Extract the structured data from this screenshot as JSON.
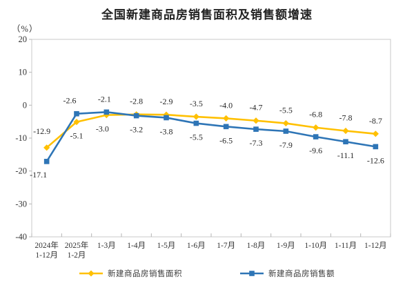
{
  "page": {
    "background": "#ffffff"
  },
  "header": {
    "title": "全国新建商品房销售面积及销售额增速",
    "unit_label": "（%）"
  },
  "chart_data": {
    "type": "line",
    "title": "全国新建商品房销售面积及销售额增速",
    "ylabel": "（%）",
    "xlabel": "",
    "ylim": [
      -40,
      20
    ],
    "yticks": [
      20,
      10,
      0,
      -10,
      -20,
      -30,
      -40
    ],
    "grid": false,
    "legend_position": "bottom",
    "axis_color": "#c9c9c9",
    "tick_color": "#b5b5b5",
    "text_color": "#333333",
    "label_color": "#262626",
    "categories": [
      "2024年\n1-12月",
      "2025年\n1-2月",
      "1-3月",
      "1-4月",
      "1-5月",
      "1-6月",
      "1-7月",
      "1-8月",
      "1-9月",
      "1-10月",
      "1-11月",
      "1-12月"
    ],
    "series": [
      {
        "name": "新建商品房销售面积",
        "color": "#FFC000",
        "marker": "diamond",
        "values": [
          -12.9,
          -5.1,
          -3.0,
          -2.8,
          -2.9,
          -3.5,
          -4.0,
          -4.7,
          -5.5,
          -6.8,
          -7.8,
          -8.7
        ],
        "labels": [
          "-12.9",
          "-5.1",
          "-3.0",
          "-2.8",
          "-2.9",
          "-3.5",
          "-4.0",
          "-4.7",
          "-5.5",
          "-6.8",
          "-7.8",
          "-8.7"
        ],
        "label_pos": [
          "above",
          "below",
          "below",
          "above",
          "above",
          "above",
          "above",
          "above",
          "above",
          "above",
          "above",
          "above"
        ],
        "label_dx": {
          "0": -7,
          "2": -6
        },
        "label_dy": {
          "0": -20
        }
      },
      {
        "name": "新建商品房销售额",
        "color": "#2E75B6",
        "marker": "square",
        "values": [
          -17.1,
          -2.6,
          -2.1,
          -3.2,
          -3.8,
          -5.5,
          -6.5,
          -7.3,
          -7.9,
          -9.6,
          -11.1,
          -12.6
        ],
        "labels": [
          "-17.1",
          "-2.6",
          "-2.1",
          "-3.2",
          "-3.8",
          "-5.5",
          "-6.5",
          "-7.3",
          "-7.9",
          "-9.6",
          "-11.1",
          "-12.6"
        ],
        "label_pos": [
          "below",
          "above",
          "above",
          "below",
          "below",
          "below",
          "below",
          "below",
          "below",
          "below",
          "below",
          "below"
        ],
        "label_dx": {
          "0": -12,
          "1": -10,
          "2": -3
        },
        "label_dy": {
          "0": 23
        }
      }
    ]
  }
}
